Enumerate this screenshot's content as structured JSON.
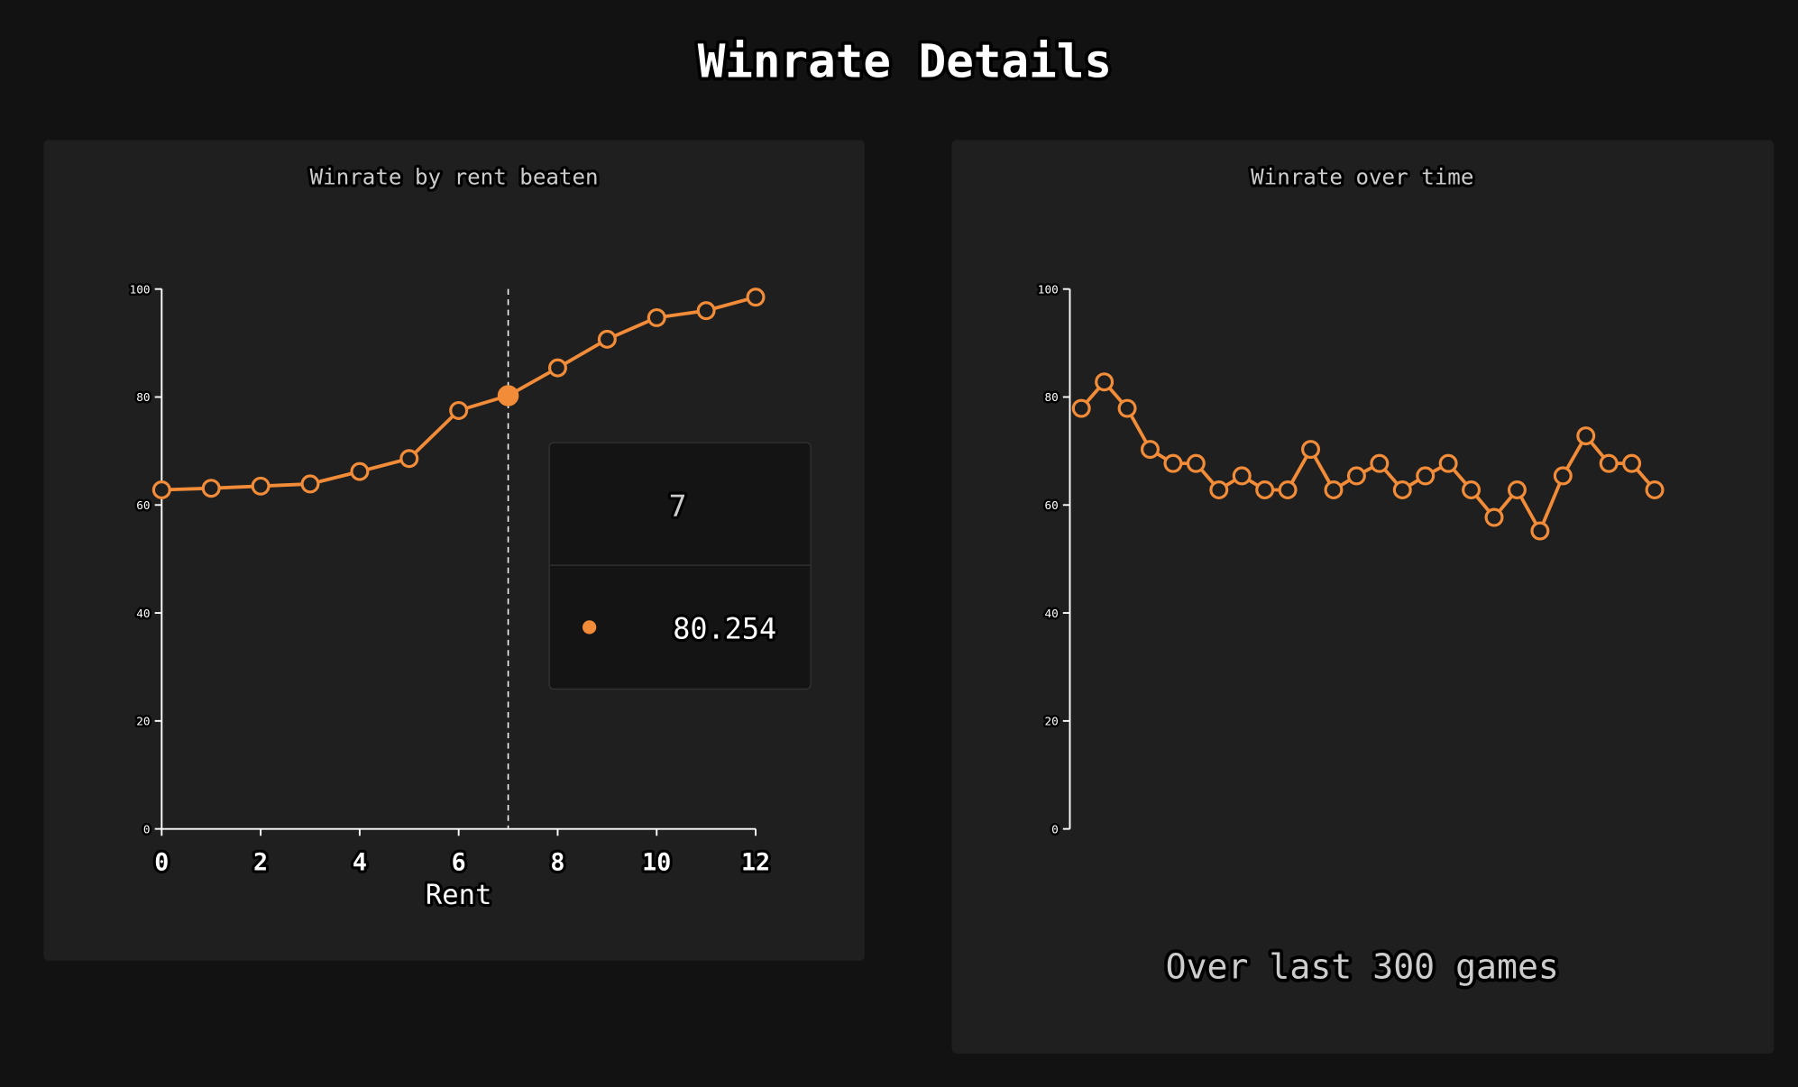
{
  "title": "Winrate Details",
  "chart_data": [
    {
      "type": "line",
      "title": "Winrate by rent beaten",
      "xlabel": "Rent",
      "x": [
        0,
        1,
        2,
        3,
        4,
        5,
        6,
        7,
        8,
        9,
        10,
        11,
        12
      ],
      "values": [
        62.8,
        63.1,
        63.5,
        63.9,
        66.2,
        68.6,
        77.5,
        80.254,
        85.4,
        90.7,
        94.7,
        96.0,
        98.5
      ],
      "color": "#f28c38",
      "xlim": [
        0,
        12
      ],
      "xticks": [
        0,
        2,
        4,
        6,
        8,
        10,
        12
      ],
      "ylim": [
        0,
        100
      ],
      "yticks": [
        0,
        20,
        40,
        60,
        80,
        100
      ],
      "tooltip": {
        "x": 7,
        "value": 80.254
      }
    },
    {
      "type": "line",
      "title": "Winrate over time",
      "values": [
        77.9,
        82.8,
        77.9,
        70.3,
        67.7,
        67.7,
        62.8,
        65.4,
        62.8,
        62.8,
        70.3,
        62.8,
        65.4,
        67.7,
        62.8,
        65.4,
        67.7,
        62.8,
        57.7,
        62.8,
        55.2,
        65.4,
        72.8,
        67.7,
        67.7,
        62.8
      ],
      "color": "#f28c38",
      "ylim": [
        0,
        100
      ],
      "yticks": [
        0,
        20,
        40,
        60,
        80,
        100
      ],
      "note": "Over last 300 games"
    }
  ]
}
